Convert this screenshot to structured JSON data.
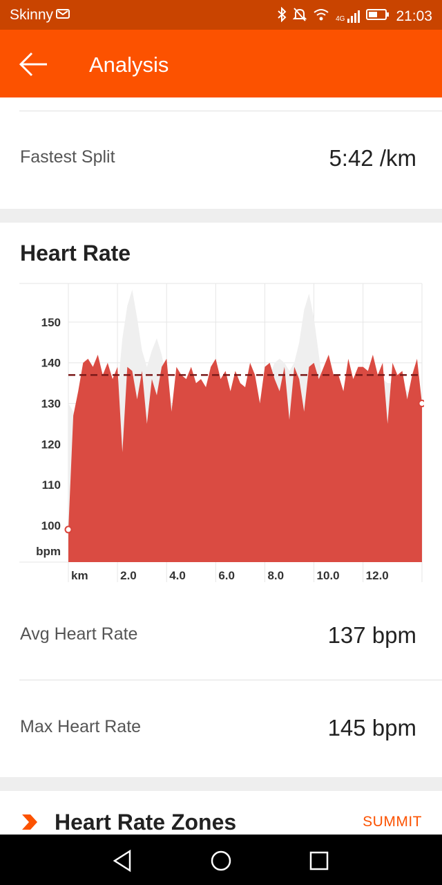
{
  "status_bar": {
    "carrier": "Skinny",
    "network": "4G",
    "time": "21:03",
    "icons": [
      "bluetooth-icon",
      "mute-icon",
      "wifi-icon",
      "signal-icon",
      "battery-icon"
    ]
  },
  "app_bar": {
    "back_icon": "arrow-left-icon",
    "title": "Analysis"
  },
  "fastest_split": {
    "label": "Fastest Split",
    "value": "5:42 /km"
  },
  "heart_rate": {
    "title": "Heart Rate",
    "avg_label": "Avg Heart Rate",
    "avg_value": "137 bpm",
    "max_label": "Max Heart Rate",
    "max_value": "145 bpm"
  },
  "heart_rate_zones": {
    "title": "Heart Rate Zones",
    "badge": "SUMMIT",
    "icon": "chevron-right-icon"
  },
  "nav_bar": {
    "icons": [
      "back-triangle-icon",
      "home-circle-icon",
      "recents-square-icon"
    ]
  },
  "colors": {
    "brand_orange": "#fc5200",
    "status_bar": "#c94400",
    "hr_fill": "#d9453c",
    "avg_line": "#7a1a1a",
    "elevation": "#efefef"
  },
  "chart_data": {
    "type": "area",
    "xlabel": "km",
    "ylabel": "bpm",
    "x_ticks": [
      "2.0",
      "4.0",
      "6.0",
      "8.0",
      "10.0",
      "12.0"
    ],
    "y_ticks": [
      "100",
      "110",
      "120",
      "130",
      "140",
      "150"
    ],
    "xlim": [
      0,
      14.4
    ],
    "ylim": [
      91,
      159.5
    ],
    "avg_line": 137,
    "x": [
      0.0,
      0.2,
      0.4,
      0.6,
      0.8,
      1.0,
      1.2,
      1.4,
      1.6,
      1.8,
      2.0,
      2.2,
      2.4,
      2.6,
      2.8,
      3.0,
      3.2,
      3.4,
      3.6,
      3.8,
      4.0,
      4.2,
      4.4,
      4.6,
      4.8,
      5.0,
      5.2,
      5.4,
      5.6,
      5.8,
      6.0,
      6.2,
      6.4,
      6.6,
      6.8,
      7.0,
      7.2,
      7.4,
      7.6,
      7.8,
      8.0,
      8.2,
      8.4,
      8.6,
      8.8,
      9.0,
      9.2,
      9.4,
      9.6,
      9.8,
      10.0,
      10.2,
      10.4,
      10.6,
      10.8,
      11.0,
      11.2,
      11.4,
      11.6,
      11.8,
      12.0,
      12.2,
      12.4,
      12.6,
      12.8,
      13.0,
      13.2,
      13.4,
      13.6,
      13.8,
      14.0,
      14.2,
      14.4
    ],
    "heart_rate": [
      99,
      127,
      133,
      140,
      141,
      139,
      142,
      137,
      140,
      136,
      139,
      118,
      139,
      138,
      131,
      138,
      125,
      136,
      132,
      139,
      141,
      128,
      139,
      137,
      136,
      139,
      135,
      136,
      134,
      139,
      141,
      136,
      138,
      133,
      138,
      135,
      134,
      140,
      137,
      130,
      139,
      140,
      136,
      133,
      139,
      126,
      139,
      136,
      128,
      139,
      140,
      136,
      139,
      142,
      137,
      137,
      133,
      141,
      136,
      139,
      139,
      138,
      142,
      137,
      140,
      125,
      140,
      137,
      138,
      131,
      137,
      141,
      130
    ],
    "series": [
      {
        "name": "heart rate",
        "values_key": "heart_rate"
      },
      {
        "name": "elevation",
        "values": [
          130,
          128,
          123,
          116,
          109,
          102,
          98,
          94,
          101,
          116,
          133,
          146,
          154,
          158,
          151,
          143,
          139,
          143,
          146,
          142,
          136,
          130,
          126,
          123,
          121,
          122,
          125,
          128,
          132,
          134,
          134,
          131,
          129,
          127,
          126,
          125,
          125,
          126,
          128,
          131,
          134,
          137,
          140,
          141,
          140,
          138,
          140,
          145,
          153,
          157,
          151,
          142,
          133,
          124,
          115,
          106,
          99,
          93,
          101,
          115,
          129,
          134,
          136,
          137,
          136,
          135,
          135,
          135,
          134,
          133,
          132,
          130,
          129
        ]
      }
    ],
    "markers": [
      {
        "x": 0.0,
        "y": 99
      },
      {
        "x": 14.4,
        "y": 130
      }
    ]
  }
}
